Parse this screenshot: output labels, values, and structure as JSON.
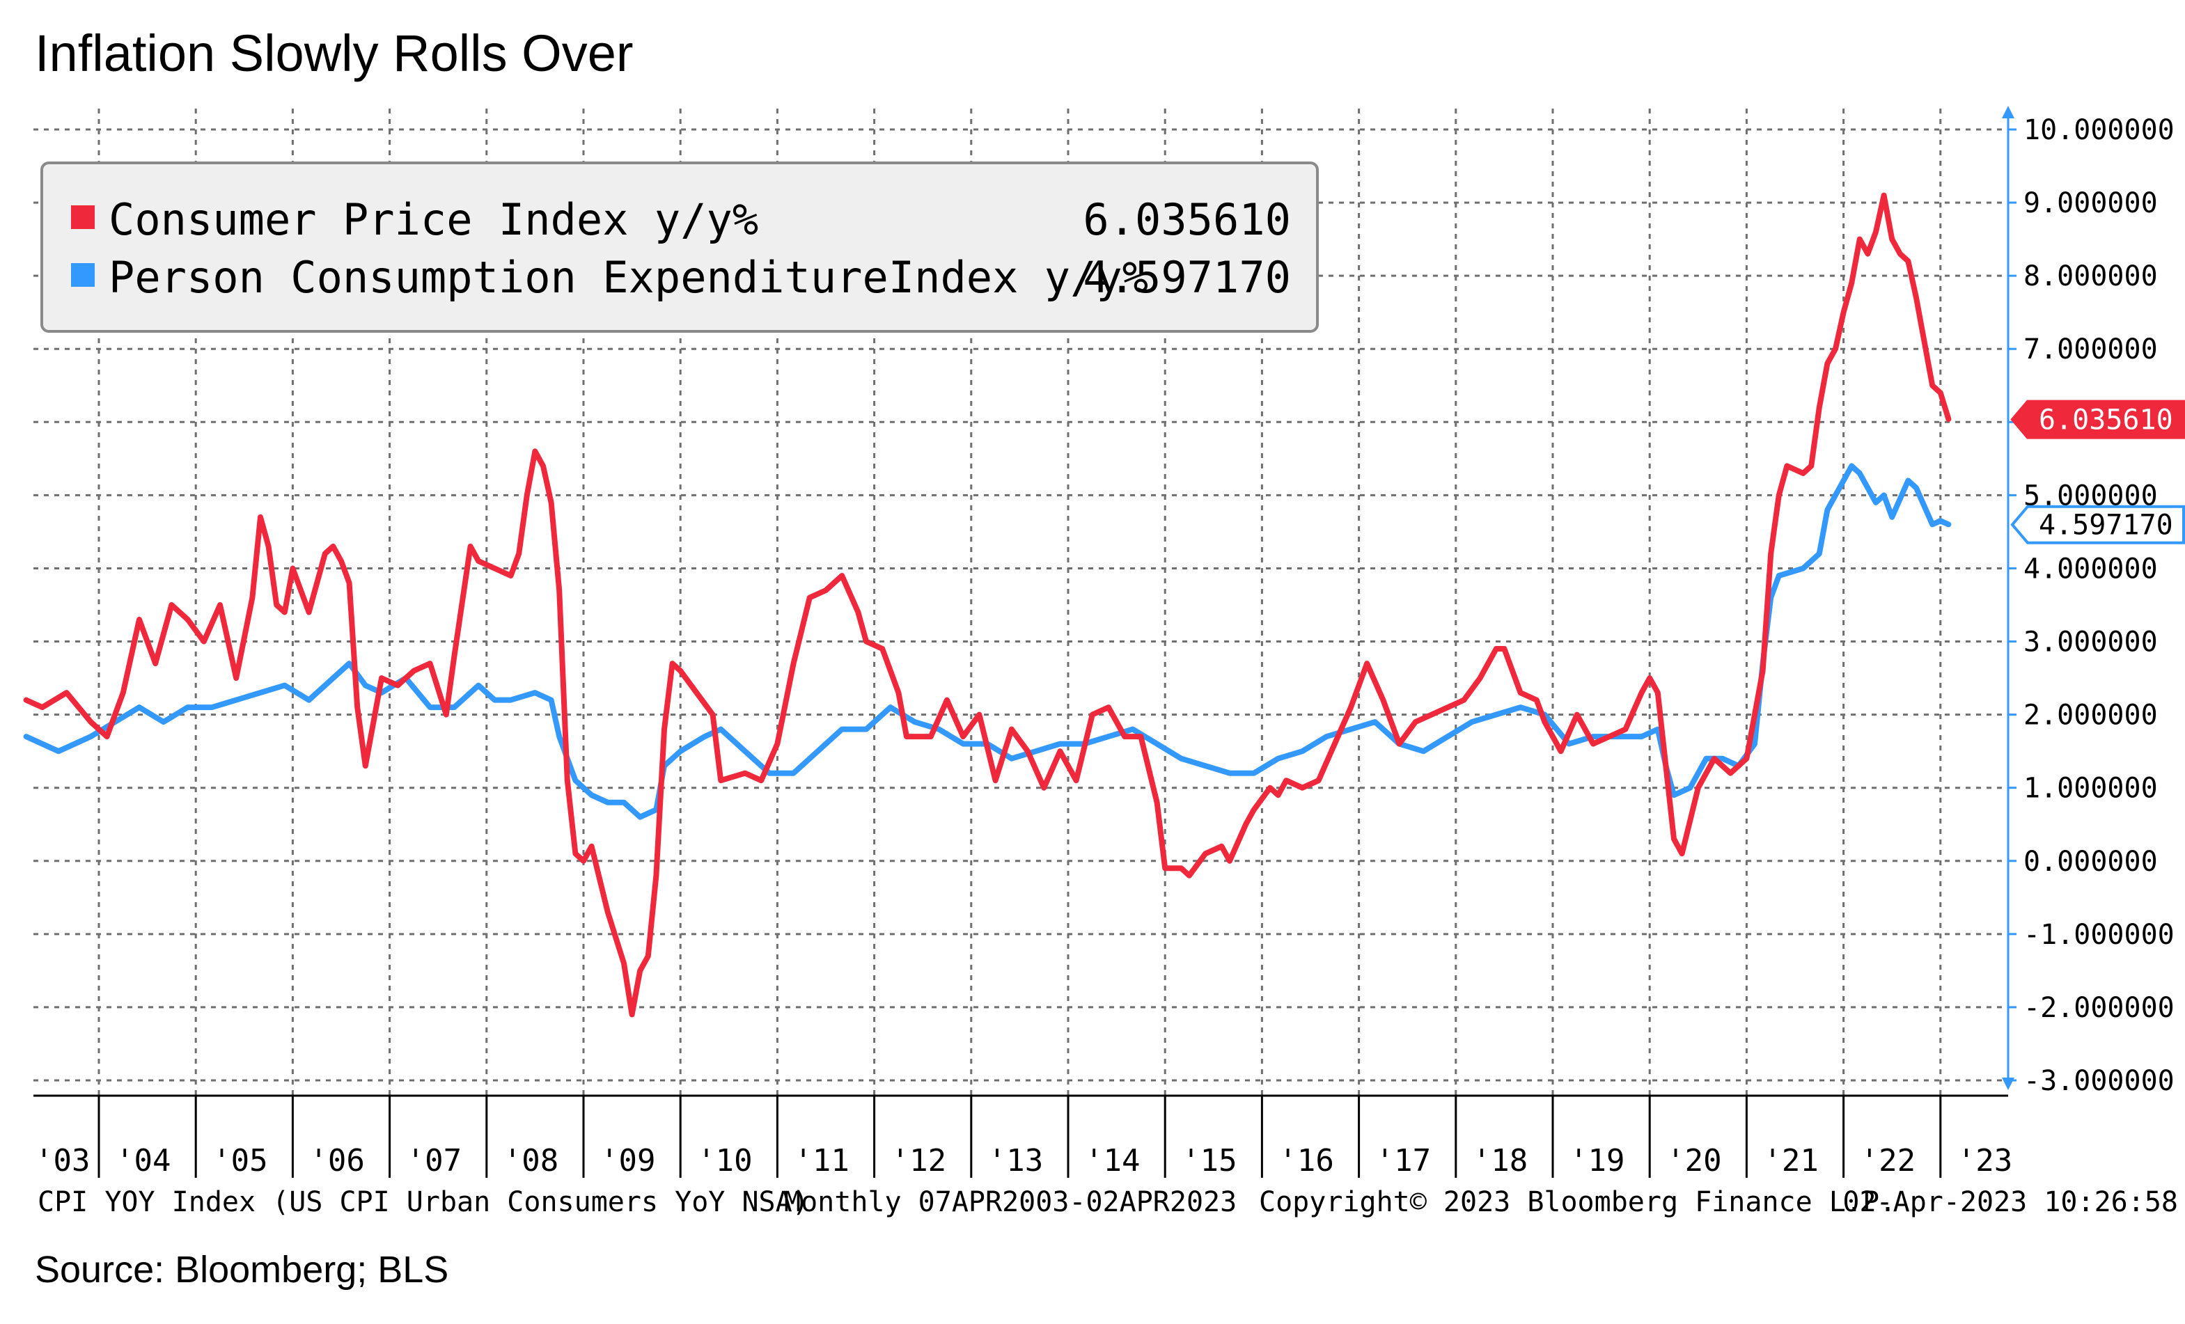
{
  "title": "Inflation Slowly Rolls Over",
  "source": "Source: Bloomberg; BLS",
  "footer": {
    "index_desc": "CPI YOY Index (US CPI Urban Consumers YoY NSA)",
    "period": "Monthly 07APR2003-02APR2023",
    "copyright": "Copyright© 2023 Bloomberg Finance L.P.",
    "timestamp": "02-Apr-2023 10:26:58"
  },
  "legend": [
    {
      "label": "Consumer Price Index y/y%",
      "value": "6.035610",
      "color": "#f0283c"
    },
    {
      "label": "Person Consumption ExpenditureIndex y/y%",
      "value": "4.597170",
      "color": "#3399ff"
    }
  ],
  "badges": [
    {
      "text": "6.035610",
      "color": "#f0283c",
      "value": 6.03561
    },
    {
      "text": "4.597170",
      "color": "#3399ff",
      "value": 4.59717
    }
  ],
  "chart_data": {
    "type": "line",
    "title": "Inflation Slowly Rolls Over",
    "x_start": "2003-04",
    "x_end": "2023-03",
    "x_ticks": [
      "'03",
      "'04",
      "'05",
      "'06",
      "'07",
      "'08",
      "'09",
      "'10",
      "'11",
      "'12",
      "'13",
      "'14",
      "'15",
      "'16",
      "'17",
      "'18",
      "'19",
      "'20",
      "'21",
      "'22",
      "'23"
    ],
    "y_ticks": [
      "10.000000",
      "9.000000",
      "8.000000",
      "7.000000",
      "6.000000",
      "5.000000",
      "4.000000",
      "3.000000",
      "2.000000",
      "1.000000",
      "0.000000",
      "-1.000000",
      "-2.000000",
      "-3.000000"
    ],
    "ylim": [
      -3,
      10
    ],
    "grid": true,
    "legend_position": "top-left",
    "series": [
      {
        "name": "Consumer Price Index y/y%",
        "color": "#f0283c",
        "points": [
          [
            "2003-04",
            2.2
          ],
          [
            "2003-06",
            2.1
          ],
          [
            "2003-09",
            2.3
          ],
          [
            "2003-12",
            1.9
          ],
          [
            "2004-02",
            1.7
          ],
          [
            "2004-04",
            2.3
          ],
          [
            "2004-06",
            3.3
          ],
          [
            "2004-08",
            2.7
          ],
          [
            "2004-10",
            3.5
          ],
          [
            "2004-12",
            3.3
          ],
          [
            "2005-02",
            3.0
          ],
          [
            "2005-04",
            3.5
          ],
          [
            "2005-06",
            2.5
          ],
          [
            "2005-08",
            3.6
          ],
          [
            "2005-09",
            4.7
          ],
          [
            "2005-10",
            4.3
          ],
          [
            "2005-11",
            3.5
          ],
          [
            "2005-12",
            3.4
          ],
          [
            "2006-01",
            4.0
          ],
          [
            "2006-03",
            3.4
          ],
          [
            "2006-05",
            4.2
          ],
          [
            "2006-06",
            4.3
          ],
          [
            "2006-07",
            4.1
          ],
          [
            "2006-08",
            3.8
          ],
          [
            "2006-09",
            2.1
          ],
          [
            "2006-10",
            1.3
          ],
          [
            "2006-12",
            2.5
          ],
          [
            "2007-02",
            2.4
          ],
          [
            "2007-04",
            2.6
          ],
          [
            "2007-06",
            2.7
          ],
          [
            "2007-08",
            2.0
          ],
          [
            "2007-09",
            2.8
          ],
          [
            "2007-11",
            4.3
          ],
          [
            "2007-12",
            4.1
          ],
          [
            "2008-02",
            4.0
          ],
          [
            "2008-04",
            3.9
          ],
          [
            "2008-05",
            4.2
          ],
          [
            "2008-06",
            5.0
          ],
          [
            "2008-07",
            5.6
          ],
          [
            "2008-08",
            5.4
          ],
          [
            "2008-09",
            4.9
          ],
          [
            "2008-10",
            3.7
          ],
          [
            "2008-11",
            1.1
          ],
          [
            "2008-12",
            0.1
          ],
          [
            "2009-01",
            0.0
          ],
          [
            "2009-02",
            0.2
          ],
          [
            "2009-04",
            -0.7
          ],
          [
            "2009-06",
            -1.4
          ],
          [
            "2009-07",
            -2.1
          ],
          [
            "2009-08",
            -1.5
          ],
          [
            "2009-09",
            -1.3
          ],
          [
            "2009-10",
            -0.2
          ],
          [
            "2009-11",
            1.8
          ],
          [
            "2009-12",
            2.7
          ],
          [
            "2010-01",
            2.6
          ],
          [
            "2010-03",
            2.3
          ],
          [
            "2010-05",
            2.0
          ],
          [
            "2010-06",
            1.1
          ],
          [
            "2010-09",
            1.2
          ],
          [
            "2010-11",
            1.1
          ],
          [
            "2011-01",
            1.6
          ],
          [
            "2011-03",
            2.7
          ],
          [
            "2011-05",
            3.6
          ],
          [
            "2011-07",
            3.7
          ],
          [
            "2011-09",
            3.9
          ],
          [
            "2011-11",
            3.4
          ],
          [
            "2011-12",
            3.0
          ],
          [
            "2012-02",
            2.9
          ],
          [
            "2012-04",
            2.3
          ],
          [
            "2012-05",
            1.7
          ],
          [
            "2012-06",
            1.7
          ],
          [
            "2012-08",
            1.7
          ],
          [
            "2012-10",
            2.2
          ],
          [
            "2012-12",
            1.7
          ],
          [
            "2013-02",
            2.0
          ],
          [
            "2013-04",
            1.1
          ],
          [
            "2013-06",
            1.8
          ],
          [
            "2013-08",
            1.5
          ],
          [
            "2013-10",
            1.0
          ],
          [
            "2013-12",
            1.5
          ],
          [
            "2014-02",
            1.1
          ],
          [
            "2014-04",
            2.0
          ],
          [
            "2014-06",
            2.1
          ],
          [
            "2014-08",
            1.7
          ],
          [
            "2014-10",
            1.7
          ],
          [
            "2014-12",
            0.8
          ],
          [
            "2015-01",
            -0.1
          ],
          [
            "2015-03",
            -0.1
          ],
          [
            "2015-04",
            -0.2
          ],
          [
            "2015-06",
            0.1
          ],
          [
            "2015-08",
            0.2
          ],
          [
            "2015-09",
            0.0
          ],
          [
            "2015-11",
            0.5
          ],
          [
            "2015-12",
            0.7
          ],
          [
            "2016-02",
            1.0
          ],
          [
            "2016-03",
            0.9
          ],
          [
            "2016-04",
            1.1
          ],
          [
            "2016-06",
            1.0
          ],
          [
            "2016-08",
            1.1
          ],
          [
            "2016-10",
            1.6
          ],
          [
            "2016-12",
            2.1
          ],
          [
            "2017-02",
            2.7
          ],
          [
            "2017-04",
            2.2
          ],
          [
            "2017-06",
            1.6
          ],
          [
            "2017-08",
            1.9
          ],
          [
            "2017-10",
            2.0
          ],
          [
            "2017-12",
            2.1
          ],
          [
            "2018-02",
            2.2
          ],
          [
            "2018-04",
            2.5
          ],
          [
            "2018-06",
            2.9
          ],
          [
            "2018-07",
            2.9
          ],
          [
            "2018-09",
            2.3
          ],
          [
            "2018-11",
            2.2
          ],
          [
            "2018-12",
            1.9
          ],
          [
            "2019-02",
            1.5
          ],
          [
            "2019-04",
            2.0
          ],
          [
            "2019-06",
            1.6
          ],
          [
            "2019-08",
            1.7
          ],
          [
            "2019-10",
            1.8
          ],
          [
            "2019-12",
            2.3
          ],
          [
            "2020-01",
            2.5
          ],
          [
            "2020-02",
            2.3
          ],
          [
            "2020-04",
            0.3
          ],
          [
            "2020-05",
            0.1
          ],
          [
            "2020-07",
            1.0
          ],
          [
            "2020-09",
            1.4
          ],
          [
            "2020-11",
            1.2
          ],
          [
            "2021-01",
            1.4
          ],
          [
            "2021-03",
            2.6
          ],
          [
            "2021-04",
            4.2
          ],
          [
            "2021-05",
            5.0
          ],
          [
            "2021-06",
            5.4
          ],
          [
            "2021-08",
            5.3
          ],
          [
            "2021-09",
            5.4
          ],
          [
            "2021-10",
            6.2
          ],
          [
            "2021-11",
            6.8
          ],
          [
            "2021-12",
            7.0
          ],
          [
            "2022-01",
            7.5
          ],
          [
            "2022-02",
            7.9
          ],
          [
            "2022-03",
            8.5
          ],
          [
            "2022-04",
            8.3
          ],
          [
            "2022-05",
            8.6
          ],
          [
            "2022-06",
            9.1
          ],
          [
            "2022-07",
            8.5
          ],
          [
            "2022-08",
            8.3
          ],
          [
            "2022-09",
            8.2
          ],
          [
            "2022-10",
            7.7
          ],
          [
            "2022-11",
            7.1
          ],
          [
            "2022-12",
            6.5
          ],
          [
            "2023-01",
            6.4
          ],
          [
            "2023-02",
            6.04
          ]
        ]
      },
      {
        "name": "Person Consumption ExpenditureIndex y/y%",
        "color": "#3399ff",
        "points": [
          [
            "2003-04",
            1.7
          ],
          [
            "2003-08",
            1.5
          ],
          [
            "2003-12",
            1.7
          ],
          [
            "2004-03",
            1.9
          ],
          [
            "2004-06",
            2.1
          ],
          [
            "2004-09",
            1.9
          ],
          [
            "2004-12",
            2.1
          ],
          [
            "2005-03",
            2.1
          ],
          [
            "2005-06",
            2.2
          ],
          [
            "2005-09",
            2.3
          ],
          [
            "2005-12",
            2.4
          ],
          [
            "2006-03",
            2.2
          ],
          [
            "2006-06",
            2.5
          ],
          [
            "2006-08",
            2.7
          ],
          [
            "2006-10",
            2.4
          ],
          [
            "2006-12",
            2.3
          ],
          [
            "2007-03",
            2.5
          ],
          [
            "2007-06",
            2.1
          ],
          [
            "2007-09",
            2.1
          ],
          [
            "2007-12",
            2.4
          ],
          [
            "2008-02",
            2.2
          ],
          [
            "2008-04",
            2.2
          ],
          [
            "2008-07",
            2.3
          ],
          [
            "2008-09",
            2.2
          ],
          [
            "2008-10",
            1.7
          ],
          [
            "2008-12",
            1.1
          ],
          [
            "2009-02",
            0.9
          ],
          [
            "2009-04",
            0.8
          ],
          [
            "2009-06",
            0.8
          ],
          [
            "2009-08",
            0.6
          ],
          [
            "2009-10",
            0.7
          ],
          [
            "2009-11",
            1.3
          ],
          [
            "2010-01",
            1.5
          ],
          [
            "2010-04",
            1.7
          ],
          [
            "2010-06",
            1.8
          ],
          [
            "2010-09",
            1.5
          ],
          [
            "2010-12",
            1.2
          ],
          [
            "2011-03",
            1.2
          ],
          [
            "2011-06",
            1.5
          ],
          [
            "2011-09",
            1.8
          ],
          [
            "2011-12",
            1.8
          ],
          [
            "2012-03",
            2.1
          ],
          [
            "2012-06",
            1.9
          ],
          [
            "2012-09",
            1.8
          ],
          [
            "2012-12",
            1.6
          ],
          [
            "2013-03",
            1.6
          ],
          [
            "2013-06",
            1.4
          ],
          [
            "2013-09",
            1.5
          ],
          [
            "2013-12",
            1.6
          ],
          [
            "2014-03",
            1.6
          ],
          [
            "2014-06",
            1.7
          ],
          [
            "2014-09",
            1.8
          ],
          [
            "2014-12",
            1.6
          ],
          [
            "2015-03",
            1.4
          ],
          [
            "2015-06",
            1.3
          ],
          [
            "2015-09",
            1.2
          ],
          [
            "2015-12",
            1.2
          ],
          [
            "2016-03",
            1.4
          ],
          [
            "2016-06",
            1.5
          ],
          [
            "2016-09",
            1.7
          ],
          [
            "2016-12",
            1.8
          ],
          [
            "2017-03",
            1.9
          ],
          [
            "2017-06",
            1.6
          ],
          [
            "2017-09",
            1.5
          ],
          [
            "2017-12",
            1.7
          ],
          [
            "2018-03",
            1.9
          ],
          [
            "2018-06",
            2.0
          ],
          [
            "2018-09",
            2.1
          ],
          [
            "2018-12",
            2.0
          ],
          [
            "2019-03",
            1.6
          ],
          [
            "2019-06",
            1.7
          ],
          [
            "2019-09",
            1.7
          ],
          [
            "2019-12",
            1.7
          ],
          [
            "2020-02",
            1.8
          ],
          [
            "2020-03",
            1.3
          ],
          [
            "2020-04",
            0.9
          ],
          [
            "2020-06",
            1.0
          ],
          [
            "2020-08",
            1.4
          ],
          [
            "2020-10",
            1.4
          ],
          [
            "2020-12",
            1.3
          ],
          [
            "2021-02",
            1.6
          ],
          [
            "2021-03",
            2.7
          ],
          [
            "2021-04",
            3.6
          ],
          [
            "2021-05",
            3.9
          ],
          [
            "2021-08",
            4.0
          ],
          [
            "2021-10",
            4.2
          ],
          [
            "2021-11",
            4.8
          ],
          [
            "2021-12",
            5.0
          ],
          [
            "2022-02",
            5.4
          ],
          [
            "2022-03",
            5.3
          ],
          [
            "2022-05",
            4.9
          ],
          [
            "2022-06",
            5.0
          ],
          [
            "2022-07",
            4.7
          ],
          [
            "2022-09",
            5.2
          ],
          [
            "2022-10",
            5.1
          ],
          [
            "2022-12",
            4.6
          ],
          [
            "2023-01",
            4.65
          ],
          [
            "2023-02",
            4.6
          ]
        ]
      }
    ]
  }
}
